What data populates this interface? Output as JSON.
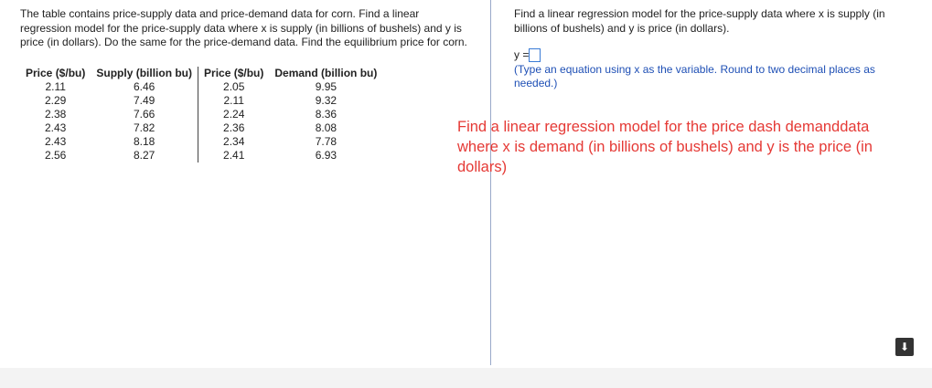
{
  "question": {
    "text": "The table contains price-supply data and price-demand data for corn. Find a linear regression model for the price-supply data where x is supply (in billions of bushels) and y is price (in dollars). Do the same for the price-demand data. Find the equilibrium price for corn."
  },
  "table": {
    "headers": [
      "Price ($/bu)",
      "Supply (billion bu)",
      "Price ($/bu)",
      "Demand (billion bu)"
    ],
    "rows": [
      [
        "2.11",
        "6.46",
        "2.05",
        "9.95"
      ],
      [
        "2.29",
        "7.49",
        "2.11",
        "9.32"
      ],
      [
        "2.38",
        "7.66",
        "2.24",
        "8.36"
      ],
      [
        "2.43",
        "7.82",
        "2.36",
        "8.08"
      ],
      [
        "2.43",
        "8.18",
        "2.34",
        "7.78"
      ],
      [
        "2.56",
        "8.27",
        "2.41",
        "6.93"
      ]
    ]
  },
  "answer": {
    "prompt": "Find a linear regression model for the price-supply data where x is supply (in billions of bushels) and y is price (in dollars).",
    "prefix": "y =",
    "hint": "(Type an equation using x as the variable. Round to two decimal places as needed.)"
  },
  "annotation": "Find a linear regression model for the price dash demanddata where x is demand (in billions of bushels) and y is the price (in dollars)"
}
